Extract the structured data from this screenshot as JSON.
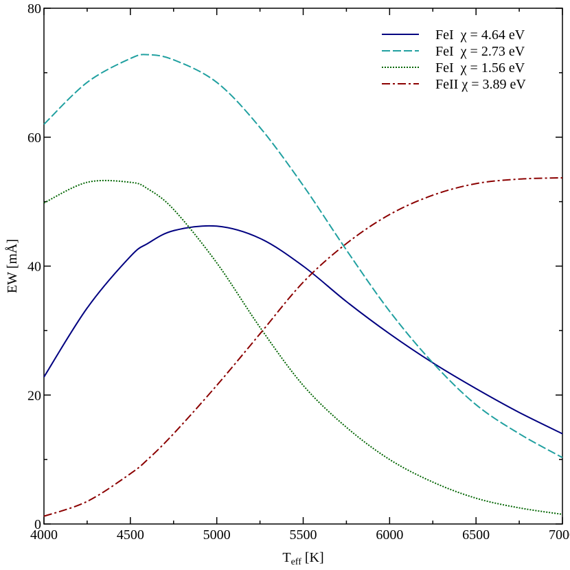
{
  "chart_data": {
    "type": "line",
    "xlabel_main": "T",
    "xlabel_sub": "eff",
    "xlabel_unit": " [K]",
    "ylabel": "EW [mÅ]",
    "xlim": [
      4000,
      7000
    ],
    "ylim": [
      0,
      80
    ],
    "xticks": [
      4000,
      4500,
      5000,
      5500,
      6000,
      6500,
      7000
    ],
    "yticks": [
      0,
      20,
      40,
      60,
      80
    ],
    "grid": false,
    "legend_position": "top-right",
    "x": [
      4000,
      4250,
      4500,
      4600,
      4750,
      5000,
      5250,
      5500,
      5750,
      6000,
      6250,
      6500,
      6750,
      7000
    ],
    "series": [
      {
        "name": "FeI  χ = 4.64 eV",
        "color": "#000080",
        "dash": "solid",
        "values": [
          22.8,
          33.5,
          41.5,
          43.5,
          45.5,
          46.2,
          44.3,
          40.0,
          34.5,
          29.5,
          25.0,
          21.0,
          17.3,
          14.0
        ]
      },
      {
        "name": "FeI  χ = 2.73 eV",
        "color": "#20a0a0",
        "dash": "dashed",
        "values": [
          62.0,
          68.5,
          72.2,
          72.8,
          72.0,
          68.5,
          61.5,
          52.5,
          42.5,
          33.0,
          25.0,
          18.5,
          14.0,
          10.3
        ]
      },
      {
        "name": "FeI  χ = 1.56 eV",
        "color": "#006400",
        "dash": "dotted",
        "values": [
          49.8,
          53.0,
          53.0,
          52.0,
          48.8,
          40.5,
          30.5,
          21.5,
          15.0,
          10.0,
          6.5,
          4.0,
          2.5,
          1.5
        ]
      },
      {
        "name": "FeII χ = 3.89 eV",
        "color": "#8b0000",
        "dash": "dashdot",
        "values": [
          1.2,
          3.5,
          7.8,
          10.0,
          14.0,
          21.5,
          29.5,
          37.5,
          43.5,
          48.0,
          51.0,
          52.8,
          53.5,
          53.7
        ]
      }
    ]
  }
}
